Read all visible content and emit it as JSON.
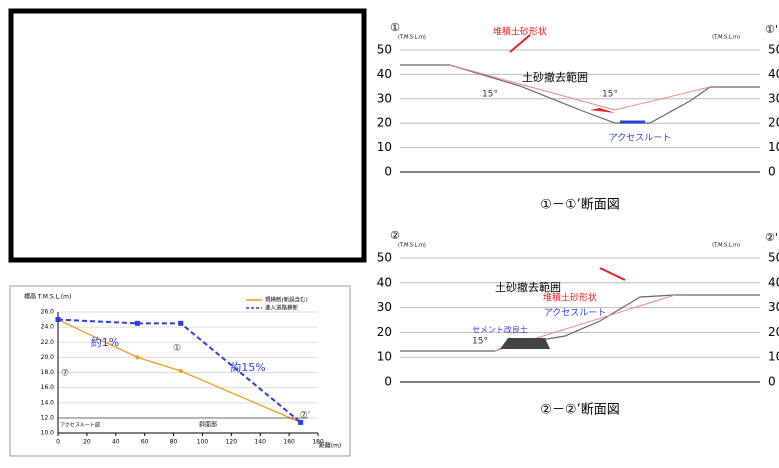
{
  "sections": [
    {
      "start_label": "①",
      "end_label": "①'",
      "unit_left": "(T.M.S.L.m)",
      "unit_right": "(T.M.S.L.m)",
      "yticks": [
        0,
        10,
        20,
        30,
        40,
        50
      ],
      "ylim": [
        0,
        50
      ],
      "notes": [
        "堆積土砂形状",
        "土砂撤去範囲",
        "15°",
        "15°",
        "アクセスルート"
      ],
      "caption": "①－①’断面図"
    },
    {
      "start_label": "②",
      "end_label": "②'",
      "unit_left": "(T.M.S.L.m)",
      "unit_right": "(T.M.S.L.m)",
      "yticks": [
        0,
        10,
        20,
        30,
        40,
        50
      ],
      "ylim": [
        0,
        50
      ],
      "notes": [
        "堆積土砂形状",
        "土砂撤去範囲",
        "アクセスルート",
        "セメント改良土",
        "15°"
      ],
      "caption": "②－②’断面図"
    }
  ],
  "chart_data": {
    "type": "line",
    "y_label": "標高 T.M.S.L.(m)",
    "x_label": "距離(m)",
    "xlim": [
      0,
      180
    ],
    "xticks": [
      0,
      20,
      40,
      60,
      80,
      100,
      120,
      140,
      160,
      180
    ],
    "ylim": [
      10,
      26
    ],
    "yticks": [
      {
        "value": 10,
        "label": "10.0"
      },
      {
        "value": 12,
        "label": "12.0"
      },
      {
        "value": 14,
        "label": "14.0"
      },
      {
        "value": 16,
        "label": "16.0"
      },
      {
        "value": 18,
        "label": "18.0"
      },
      {
        "value": 20,
        "label": "20.0"
      },
      {
        "value": 22,
        "label": "22.0"
      },
      {
        "value": 24,
        "label": "24.0"
      },
      {
        "value": 26,
        "label": "26.0"
      }
    ],
    "grid": true,
    "series": [
      {
        "name": "現横断(新設含む)",
        "color": "#f39a1e",
        "x": [
          0,
          55,
          85,
          168
        ],
        "values": [
          25,
          20,
          18.2,
          11.4
        ]
      },
      {
        "name": "進入道路横断",
        "color": "#2a3fe0",
        "x": [
          0,
          55,
          85,
          168
        ],
        "values": [
          25,
          24.5,
          24.5,
          11.4
        ]
      }
    ],
    "annotations": [
      "約1%",
      "約15%",
      "⑦",
      "①",
      "⑦'",
      "アクセスルート部",
      "斜面部"
    ]
  }
}
